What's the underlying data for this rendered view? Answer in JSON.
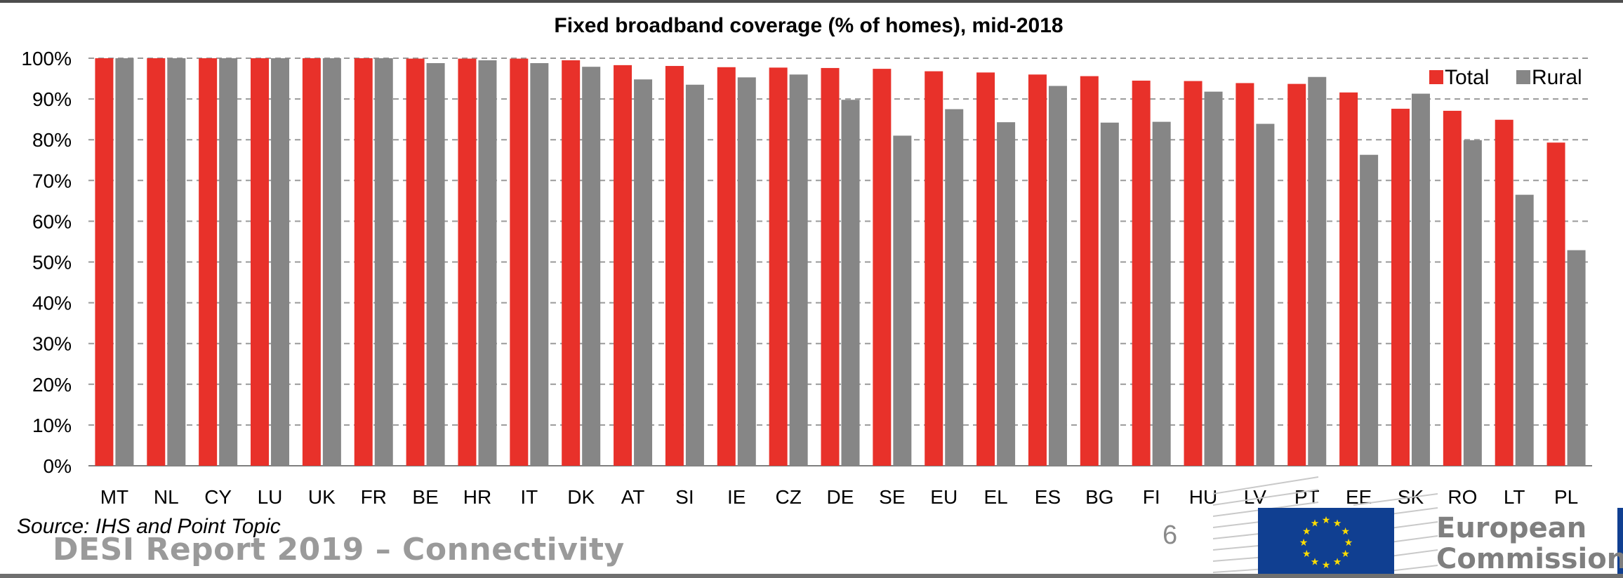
{
  "chart_data": {
    "type": "bar",
    "title": "Fixed broadband coverage (% of homes), mid-2018",
    "xlabel": "",
    "ylabel": "",
    "ylim": [
      0,
      100
    ],
    "y_ticks": [
      "0%",
      "10%",
      "20%",
      "30%",
      "40%",
      "50%",
      "60%",
      "70%",
      "80%",
      "90%",
      "100%"
    ],
    "grid": "horizontal dashed",
    "legend_position": "top-right",
    "categories": [
      "MT",
      "NL",
      "CY",
      "LU",
      "UK",
      "FR",
      "BE",
      "HR",
      "IT",
      "DK",
      "AT",
      "SI",
      "IE",
      "CZ",
      "DE",
      "SE",
      "EU",
      "EL",
      "ES",
      "BG",
      "FI",
      "HU",
      "LV",
      "PT",
      "EE",
      "SK",
      "RO",
      "LT",
      "PL"
    ],
    "series": [
      {
        "name": "Total",
        "color": "#e8312a",
        "values": [
          100,
          100,
          100,
          100,
          100,
          100,
          99.9,
          99.9,
          99.9,
          99.5,
          98.3,
          98.1,
          97.8,
          97.7,
          97.6,
          97.4,
          96.8,
          96.5,
          96.0,
          95.6,
          94.5,
          94.4,
          93.9,
          93.7,
          91.6,
          87.6,
          87.1,
          84.9,
          79.3
        ]
      },
      {
        "name": "Rural",
        "color": "#868686",
        "values": [
          100,
          100,
          100,
          100,
          100,
          100,
          98.8,
          99.5,
          98.8,
          97.9,
          94.8,
          93.5,
          95.3,
          96.0,
          89.8,
          81.0,
          87.5,
          84.3,
          93.2,
          84.2,
          84.4,
          91.8,
          83.9,
          95.4,
          76.3,
          91.3,
          79.9,
          66.5,
          52.9
        ]
      }
    ]
  },
  "footer": {
    "source": "Source: IHS and Point Topic",
    "report_title": "DESI Report 2019 – Connectivity",
    "page_number": "6",
    "logo_line1": "European",
    "logo_line2": "Commission"
  }
}
